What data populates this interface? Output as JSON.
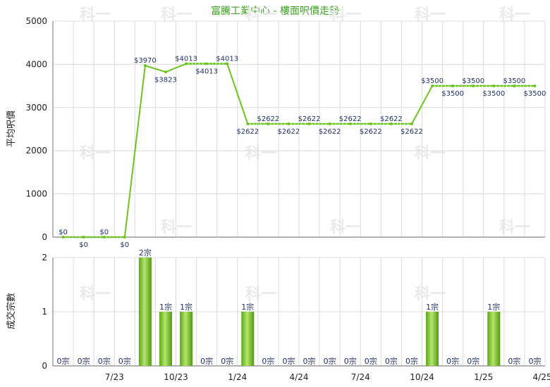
{
  "chart_data": [
    {
      "type": "line",
      "title": "富騰工業中心 - 樓面呎價走勢",
      "ylabel": "平均呎價",
      "ylim": [
        0,
        5000
      ],
      "yticks": [
        0,
        1000,
        2000,
        3000,
        4000,
        5000
      ],
      "x_tick_labels": [
        "7/23",
        "10/23",
        "1/24",
        "4/24",
        "7/24",
        "10/24",
        "1/25",
        "4/25"
      ],
      "grid": true,
      "series": [
        {
          "values": [
            0,
            0,
            0,
            0,
            3970,
            3823,
            4013,
            4013,
            4013,
            2622,
            2622,
            2622,
            2622,
            2622,
            2622,
            2622,
            2622,
            2622,
            3500,
            3500,
            3500,
            3500,
            3500,
            3500
          ],
          "labels": [
            "$0",
            "$0",
            "$0",
            "$0",
            "$3970",
            "$3823",
            "$4013",
            "$4013",
            "$4013",
            "$2622",
            "$2622",
            "$2622",
            "$2622",
            "$2622",
            "$2622",
            "$2622",
            "$2622",
            "$2622",
            "$3500",
            "$3500",
            "$3500",
            "$3500",
            "$3500",
            "$3500"
          ],
          "color": "#6cc51f"
        }
      ]
    },
    {
      "type": "bar",
      "ylabel": "成交宗數",
      "ylim": [
        0,
        2
      ],
      "yticks": [
        0,
        1,
        2
      ],
      "x_tick_labels": [
        "7/23",
        "10/23",
        "1/24",
        "4/24",
        "7/24",
        "10/24",
        "1/25",
        "4/25"
      ],
      "grid": true,
      "series": [
        {
          "values": [
            0,
            0,
            0,
            0,
            2,
            1,
            1,
            0,
            0,
            1,
            0,
            0,
            0,
            0,
            0,
            0,
            0,
            0,
            1,
            0,
            0,
            1,
            0,
            0
          ],
          "labels": [
            "0宗",
            "0宗",
            "0宗",
            "0宗",
            "2宗",
            "1宗",
            "1宗",
            "0宗",
            "0宗",
            "1宗",
            "0宗",
            "0宗",
            "0宗",
            "0宗",
            "0宗",
            "0宗",
            "0宗",
            "0宗",
            "1宗",
            "0宗",
            "0宗",
            "1宗",
            "0宗",
            "0宗"
          ],
          "color": "#6cc51f"
        }
      ]
    }
  ],
  "watermark": "科一"
}
